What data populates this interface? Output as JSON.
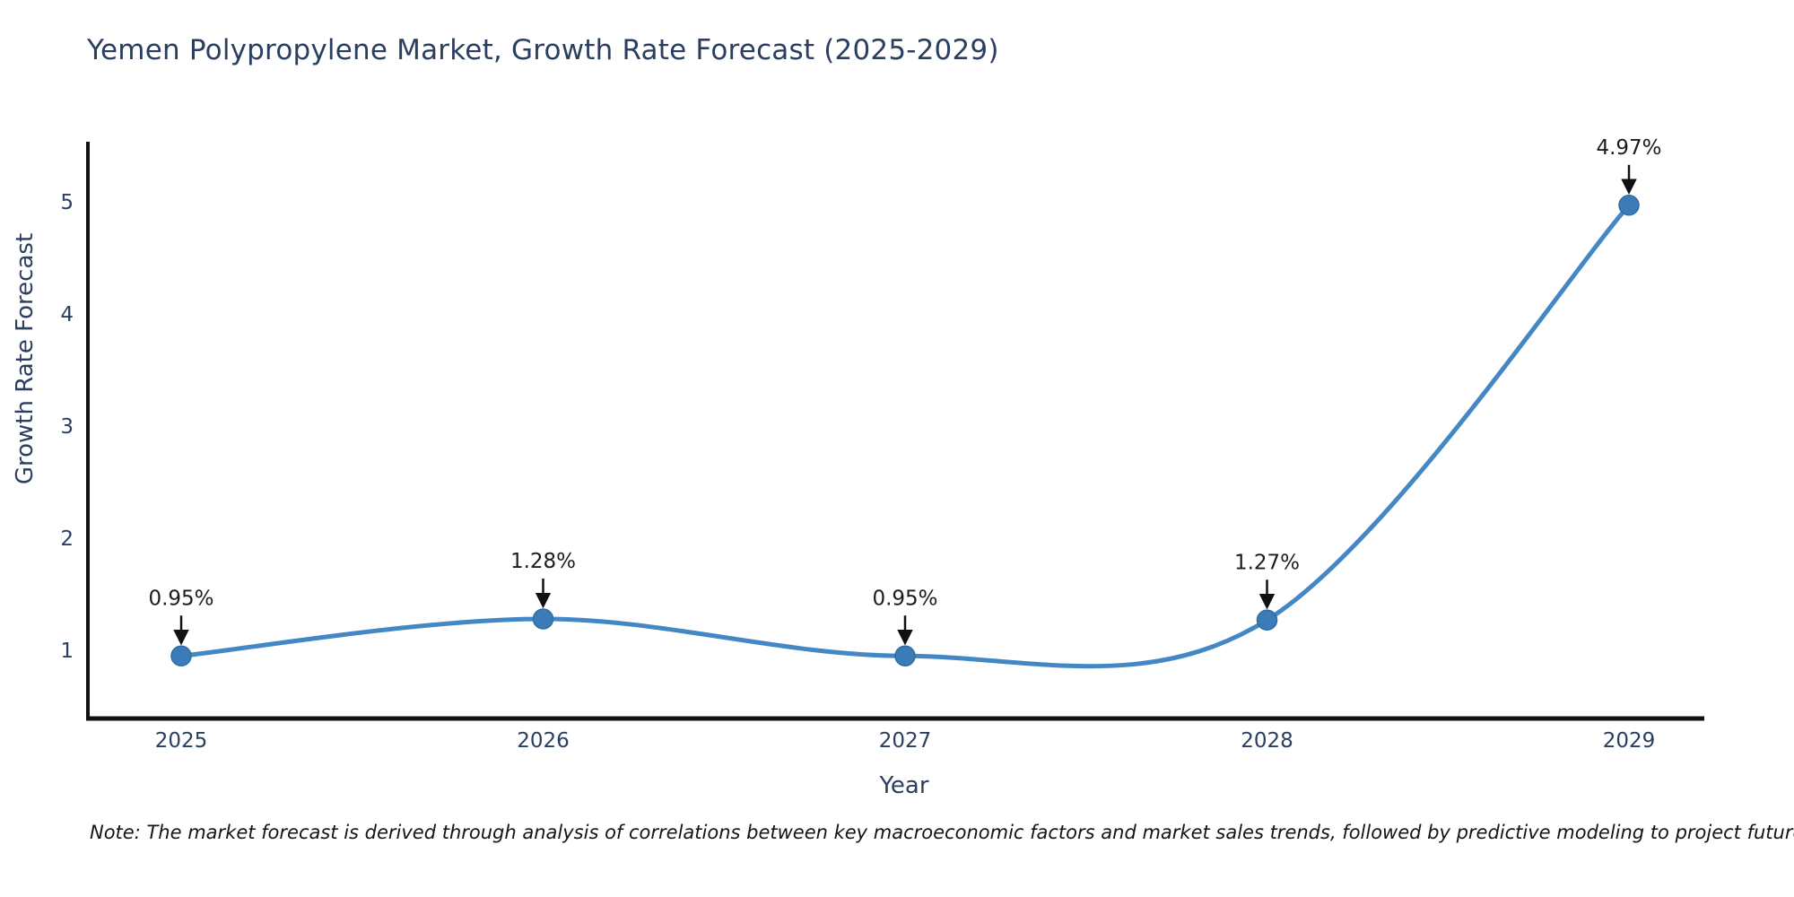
{
  "title": "Yemen Polypropylene Market, Growth Rate Forecast (2025-2029)",
  "note": "Note: The market forecast is derived through analysis of correlations between key macroeconomic factors and market sales trends, followed by predictive modeling to project future sales.",
  "chart_data": {
    "type": "line",
    "x": [
      "2025",
      "2026",
      "2027",
      "2028",
      "2029"
    ],
    "values": [
      0.95,
      1.28,
      0.95,
      1.27,
      4.97
    ],
    "point_labels": [
      "0.95%",
      "1.28%",
      "0.95%",
      "1.27%",
      "4.97%"
    ],
    "title": "Yemen Polypropylene Market, Growth Rate Forecast (2025-2029)",
    "xlabel": "Year",
    "ylabel": "Growth Rate Forecast",
    "yticks": [
      1,
      2,
      3,
      4,
      5
    ],
    "ylim": [
      0.45,
      5.45
    ],
    "grid": false,
    "legend": "none",
    "annotation_style": "black-down-arrows",
    "colors": {
      "line": "#4487c5",
      "marker": "#3b7cb8",
      "marker_edge": "#2e6da4",
      "axis": "#111111",
      "title_text": "#2a3f5f",
      "annotation_text": "#1c1c1c"
    }
  }
}
